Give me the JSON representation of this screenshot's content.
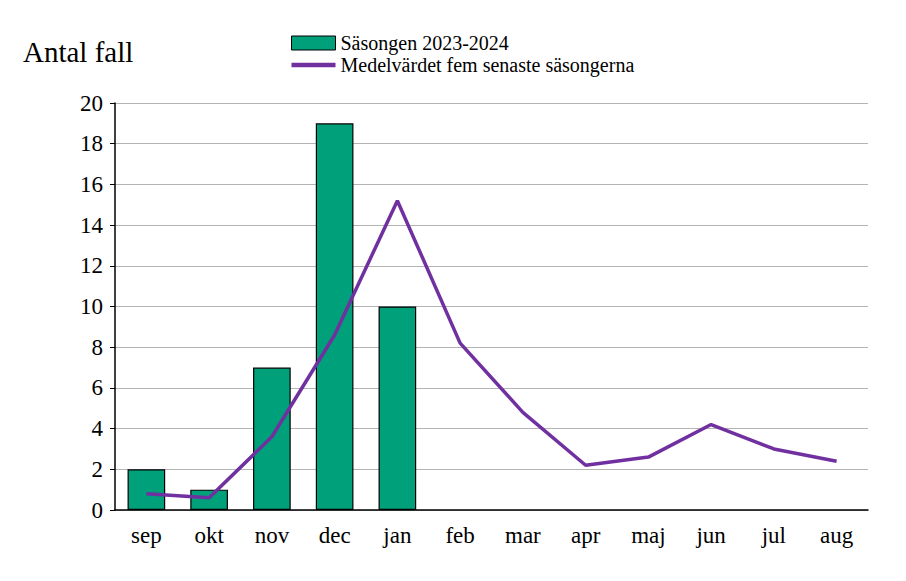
{
  "chart_data": {
    "type": "bar",
    "ylabel": "Antal fall",
    "categories": [
      "sep",
      "okt",
      "nov",
      "dec",
      "jan",
      "feb",
      "mar",
      "apr",
      "maj",
      "jun",
      "jul",
      "aug"
    ],
    "series": [
      {
        "name": "Säsongen 2023-2024",
        "type": "bar",
        "color": "#00a07a",
        "values": [
          2,
          1,
          7,
          19,
          10,
          null,
          null,
          null,
          null,
          null,
          null,
          null
        ]
      },
      {
        "name": "Medelvärdet fem senaste säsongerna",
        "type": "line",
        "color": "#7030a0",
        "values": [
          0.8,
          0.6,
          3.6,
          8.6,
          15.2,
          8.2,
          4.8,
          2.2,
          2.6,
          4.2,
          3.0,
          2.4
        ]
      }
    ],
    "ylim": [
      0,
      20
    ],
    "yticks": [
      0,
      2,
      4,
      6,
      8,
      10,
      12,
      14,
      16,
      18,
      20
    ],
    "grid": true,
    "legend": "top"
  }
}
